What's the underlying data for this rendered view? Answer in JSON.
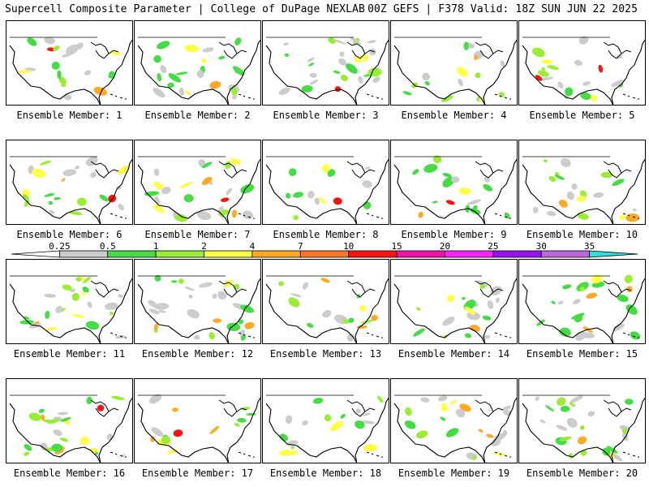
{
  "header": {
    "title": "Supercell Composite Parameter | College of DuPage NEXLAB",
    "run": "00Z GEFS | F378 Valid: 18Z SUN JUN 22 2025"
  },
  "colorbar": {
    "ticks": [
      "0.25",
      "0.5",
      "1",
      "2",
      "4",
      "7",
      "10",
      "15",
      "20",
      "25",
      "30",
      "35"
    ],
    "colors": [
      "#ffffff",
      "#cccccc",
      "#44dd44",
      "#99ee33",
      "#ffff44",
      "#ffaa22",
      "#ff7722",
      "#ff1111",
      "#ee11aa",
      "#ff22ff",
      "#9911ee",
      "#bb66dd",
      "#33dddd"
    ]
  },
  "members": [
    {
      "label": "Ensemble Member: 1"
    },
    {
      "label": "Ensemble Member: 2"
    },
    {
      "label": "Ensemble Member: 3"
    },
    {
      "label": "Ensemble Member: 4"
    },
    {
      "label": "Ensemble Member: 5"
    },
    {
      "label": "Ensemble Member: 6"
    },
    {
      "label": "Ensemble Member: 7"
    },
    {
      "label": "Ensemble Member: 8"
    },
    {
      "label": "Ensemble Member: 9"
    },
    {
      "label": "Ensemble Member: 10"
    },
    {
      "label": "Ensemble Member: 11"
    },
    {
      "label": "Ensemble Member: 12"
    },
    {
      "label": "Ensemble Member: 13"
    },
    {
      "label": "Ensemble Member: 14"
    },
    {
      "label": "Ensemble Member: 15"
    },
    {
      "label": "Ensemble Member: 16"
    },
    {
      "label": "Ensemble Member: 17"
    },
    {
      "label": "Ensemble Member: 18"
    },
    {
      "label": "Ensemble Member: 19"
    },
    {
      "label": "Ensemble Member: 20"
    }
  ]
}
